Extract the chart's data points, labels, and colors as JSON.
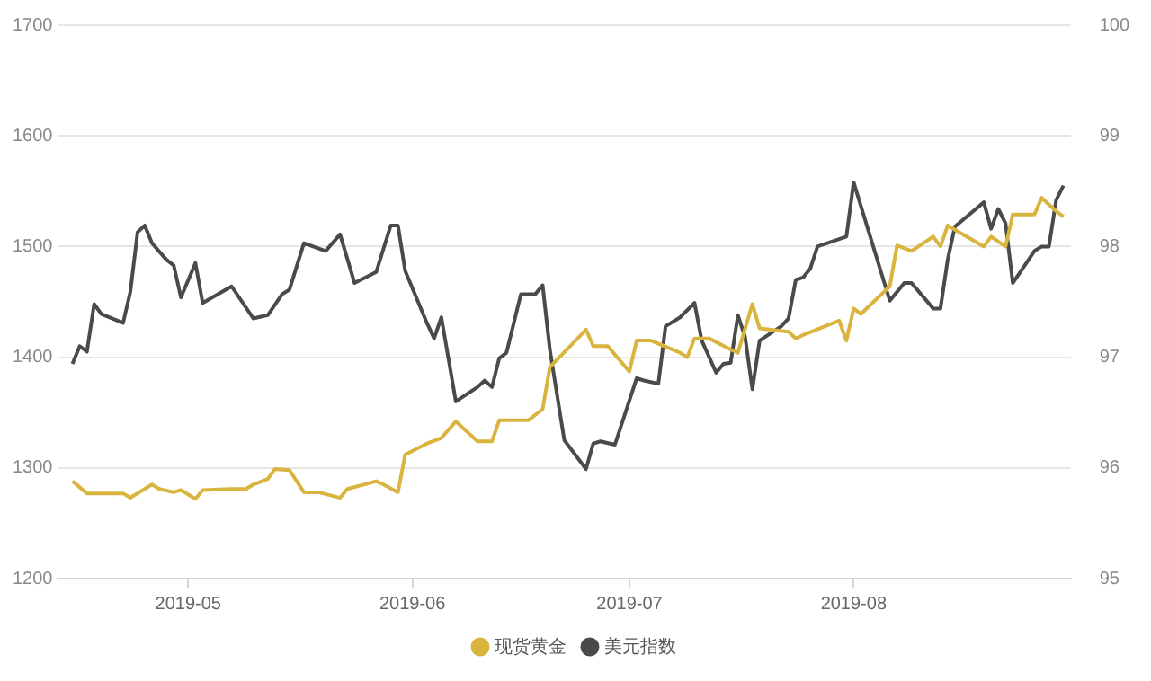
{
  "chart_data": {
    "type": "line",
    "legend": "bottom",
    "grid": "y",
    "marker": "none",
    "line_style": "solid",
    "xlim": [
      "2019-04-13",
      "2019-08-31"
    ],
    "xticks": [
      "2019-05",
      "2019-06",
      "2019-07",
      "2019-08"
    ],
    "ylim": [
      1200,
      1700
    ],
    "yticks": [
      1200,
      1300,
      1400,
      1500,
      1600,
      1700
    ],
    "y2lim": [
      95,
      100
    ],
    "y2ticks": [
      95,
      96,
      97,
      98,
      99,
      100
    ],
    "series": [
      {
        "name": "现货黄金",
        "color": "#d9b53f",
        "x": [
          "2019-04-15",
          "2019-04-17",
          "2019-04-22",
          "2019-04-23",
          "2019-04-26",
          "2019-04-27",
          "2019-04-29",
          "2019-04-30",
          "2019-05-02",
          "2019-05-03",
          "2019-05-07",
          "2019-05-09",
          "2019-05-10",
          "2019-05-12",
          "2019-05-13",
          "2019-05-15",
          "2019-05-17",
          "2019-05-19",
          "2019-05-22",
          "2019-05-23",
          "2019-05-27",
          "2019-05-28",
          "2019-05-30",
          "2019-05-31",
          "2019-06-03",
          "2019-06-05",
          "2019-06-07",
          "2019-06-10",
          "2019-06-12",
          "2019-06-13",
          "2019-06-17",
          "2019-06-19",
          "2019-06-20",
          "2019-06-24",
          "2019-06-25",
          "2019-06-26",
          "2019-06-28",
          "2019-07-01",
          "2019-07-02",
          "2019-07-04",
          "2019-07-08",
          "2019-07-09",
          "2019-07-10",
          "2019-07-12",
          "2019-07-15",
          "2019-07-16",
          "2019-07-18",
          "2019-07-19",
          "2019-07-23",
          "2019-07-24",
          "2019-07-25",
          "2019-07-30",
          "2019-07-31",
          "2019-08-01",
          "2019-08-02",
          "2019-08-06",
          "2019-08-07",
          "2019-08-09",
          "2019-08-12",
          "2019-08-13",
          "2019-08-14",
          "2019-08-19",
          "2019-08-20",
          "2019-08-22",
          "2019-08-23",
          "2019-08-26",
          "2019-08-27",
          "2019-08-29",
          "2019-08-30"
        ],
        "values": [
          1288,
          1277,
          1277,
          1273,
          1285,
          1281,
          1278,
          1280,
          1272,
          1280,
          1281,
          1281,
          1285,
          1290,
          1299,
          1298,
          1278,
          1278,
          1273,
          1281,
          1288,
          1285,
          1278,
          1312,
          1322,
          1327,
          1342,
          1324,
          1324,
          1343,
          1343,
          1353,
          1391,
          1418,
          1425,
          1410,
          1410,
          1387,
          1415,
          1415,
          1404,
          1400,
          1417,
          1417,
          1407,
          1404,
          1448,
          1426,
          1423,
          1417,
          1420,
          1433,
          1415,
          1444,
          1439,
          1464,
          1501,
          1496,
          1509,
          1500,
          1519,
          1500,
          1509,
          1500,
          1529,
          1529,
          1544,
          1532,
          1527
        ]
      },
      {
        "name": "美元指数",
        "color": "#4a4a4a",
        "axis": "y2",
        "x": [
          "2019-04-15",
          "2019-04-16",
          "2019-04-17",
          "2019-04-18",
          "2019-04-19",
          "2019-04-22",
          "2019-04-23",
          "2019-04-24",
          "2019-04-25",
          "2019-04-26",
          "2019-04-28",
          "2019-04-29",
          "2019-04-30",
          "2019-05-02",
          "2019-05-03",
          "2019-05-07",
          "2019-05-10",
          "2019-05-12",
          "2019-05-14",
          "2019-05-15",
          "2019-05-17",
          "2019-05-20",
          "2019-05-22",
          "2019-05-24",
          "2019-05-27",
          "2019-05-29",
          "2019-05-30",
          "2019-05-31",
          "2019-06-03",
          "2019-06-04",
          "2019-06-05",
          "2019-06-07",
          "2019-06-10",
          "2019-06-11",
          "2019-06-12",
          "2019-06-13",
          "2019-06-14",
          "2019-06-16",
          "2019-06-18",
          "2019-06-19",
          "2019-06-20",
          "2019-06-22",
          "2019-06-25",
          "2019-06-26",
          "2019-06-27",
          "2019-06-29",
          "2019-07-02",
          "2019-07-03",
          "2019-07-05",
          "2019-07-06",
          "2019-07-08",
          "2019-07-10",
          "2019-07-11",
          "2019-07-13",
          "2019-07-14",
          "2019-07-15",
          "2019-07-16",
          "2019-07-17",
          "2019-07-18",
          "2019-07-19",
          "2019-07-22",
          "2019-07-23",
          "2019-07-24",
          "2019-07-25",
          "2019-07-26",
          "2019-07-27",
          "2019-07-31",
          "2019-08-01",
          "2019-08-06",
          "2019-08-08",
          "2019-08-09",
          "2019-08-12",
          "2019-08-13",
          "2019-08-14",
          "2019-08-15",
          "2019-08-19",
          "2019-08-20",
          "2019-08-21",
          "2019-08-22",
          "2019-08-23",
          "2019-08-26",
          "2019-08-27",
          "2019-08-28",
          "2019-08-29",
          "2019-08-30"
        ],
        "values": [
          96.94,
          97.1,
          97.05,
          97.48,
          97.39,
          97.31,
          97.59,
          98.13,
          98.19,
          98.03,
          97.88,
          97.83,
          97.54,
          97.85,
          97.49,
          97.64,
          97.35,
          97.38,
          97.57,
          97.61,
          98.03,
          97.96,
          98.11,
          97.67,
          97.77,
          98.19,
          98.19,
          97.78,
          97.31,
          97.17,
          97.36,
          96.6,
          96.73,
          96.79,
          96.73,
          96.99,
          97.04,
          97.57,
          97.57,
          97.65,
          97.07,
          96.25,
          95.99,
          96.22,
          96.24,
          96.21,
          96.81,
          96.79,
          96.76,
          97.28,
          97.36,
          97.49,
          97.15,
          96.86,
          96.94,
          96.95,
          97.38,
          97.18,
          96.71,
          97.15,
          97.28,
          97.35,
          97.7,
          97.72,
          97.8,
          98.0,
          98.09,
          98.58,
          97.51,
          97.67,
          97.67,
          97.44,
          97.44,
          97.88,
          98.18,
          98.4,
          98.16,
          98.34,
          98.21,
          97.67,
          97.96,
          98.0,
          98.0,
          98.42,
          98.55
        ]
      }
    ]
  }
}
